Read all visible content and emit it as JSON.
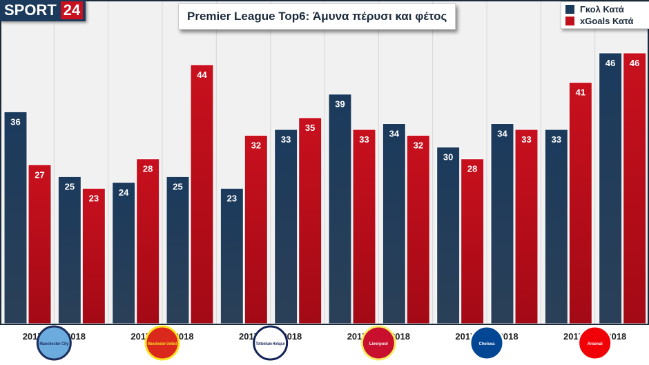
{
  "brand": {
    "name": "SPORT",
    "num": "24"
  },
  "chart_data": {
    "type": "bar",
    "title": "Premier League Top6: Άμυνα πέρυσι και φέτος",
    "teams": [
      "Manchester City",
      "Manchester United",
      "Tottenham Hotspur",
      "Liverpool",
      "Chelsea",
      "Arsenal"
    ],
    "categories": [
      "2017",
      "2018",
      "2017",
      "2018",
      "2017",
      "2018",
      "2017",
      "2018",
      "2017",
      "2018",
      "2017",
      "2018"
    ],
    "series": [
      {
        "name": "Γκολ Κατά",
        "color": "#1b3a5c",
        "values": [
          36,
          25,
          24,
          25,
          23,
          33,
          39,
          34,
          30,
          34,
          33,
          46
        ]
      },
      {
        "name": "xGoals Κατά",
        "color": "#c0101c",
        "values": [
          27,
          23,
          28,
          44,
          32,
          35,
          33,
          32,
          28,
          33,
          41,
          46
        ]
      }
    ],
    "ylim": [
      0,
      55
    ],
    "grid": "vertical",
    "legend": "top-right"
  }
}
